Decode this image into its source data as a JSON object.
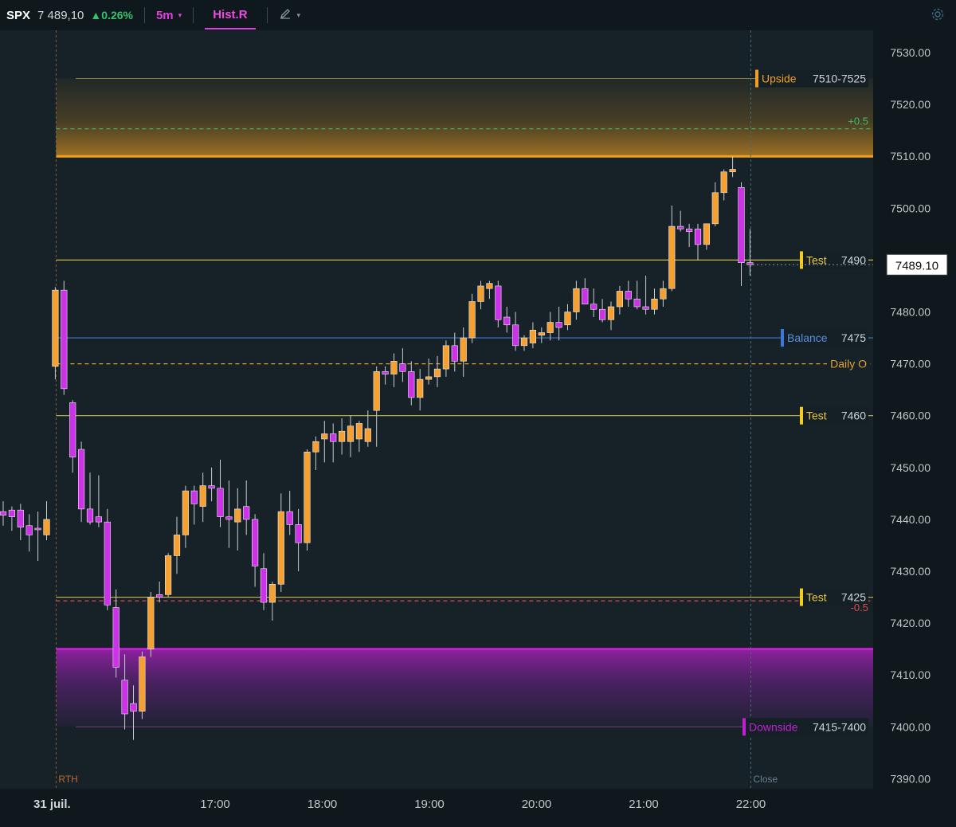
{
  "header": {
    "symbol": "SPX",
    "last_price": "7 489,10",
    "change": "▲0.26%",
    "timeframe": "5m",
    "timeframe_caret": "▾",
    "tab_label": "Hist.R",
    "draw_icon": "pencil-icon",
    "draw_caret": "▾",
    "settings_icon": "gear-icon"
  },
  "colors": {
    "background": "#162228",
    "up_candle": "#f5a030",
    "down_candle": "#cc33e8",
    "upside_zone": "#f0a020",
    "downside_zone": "#c020d0",
    "balance_line": "#3b78d8",
    "test_line": "#c8b84a",
    "plus_line": "#3fbf5f",
    "minus_line": "#e04a4a",
    "price_tag_bg": "#ffffff"
  },
  "chart_data": {
    "type": "candlestick",
    "symbol": "SPX",
    "interval": "5m",
    "date_label": "31 juil.",
    "time_ticks": [
      "17:00",
      "18:00",
      "19:00",
      "20:00",
      "21:00",
      "22:00"
    ],
    "y_ticks": [
      "7530.00",
      "7520.00",
      "7510.00",
      "7500.00",
      "7490.00",
      "7480.00",
      "7470.00",
      "7460.00",
      "7450.00",
      "7440.00",
      "7430.00",
      "7420.00",
      "7410.00",
      "7400.00",
      "7390.00"
    ],
    "ylim": [
      7388,
      7533
    ],
    "last_price": "7489.10",
    "zones": [
      {
        "label": "Upside",
        "range": "7510-7525",
        "from": 7510,
        "to": 7525,
        "color": "#f0a020"
      },
      {
        "label": "Downside",
        "range": "7415-7400",
        "from": 7400,
        "to": 7415,
        "color": "#c020d0"
      }
    ],
    "levels": [
      {
        "label": "Test",
        "value_label": "7490",
        "price": 7490,
        "color": "#c8b84a",
        "tag": "#f2cc20",
        "style": "solid"
      },
      {
        "label": "Balance",
        "value_label": "7475",
        "price": 7475,
        "color": "#3b78d8",
        "tag": "#3b78d8",
        "style": "solid"
      },
      {
        "label": "Daily O",
        "value_label": "",
        "price": 7470,
        "color": "#e0a030",
        "tag": "",
        "style": "dashed"
      },
      {
        "label": "Test",
        "value_label": "7460",
        "price": 7460,
        "color": "#c8b84a",
        "tag": "#f2cc20",
        "style": "solid"
      },
      {
        "label": "Test",
        "value_label": "7425",
        "price": 7425,
        "color": "#c8b84a",
        "tag": "#f2cc20",
        "style": "solid"
      },
      {
        "label": "+0.5",
        "value_label": "",
        "price": 7515.3,
        "color": "#3fbf5f",
        "tag": "",
        "style": "dashed"
      },
      {
        "label": "-0.5",
        "value_label": "",
        "price": 7424.3,
        "color": "#e04a4a",
        "tag": "",
        "style": "dashed"
      }
    ],
    "session_labels": {
      "open": "RTH",
      "close": "Close"
    },
    "candles": [
      {
        "time": "15:25",
        "open": 7441.5,
        "high": 7443.5,
        "low": 7438.8,
        "close": 7440.8
      },
      {
        "time": "15:30",
        "open": 7441.8,
        "high": 7442.5,
        "low": 7437.8,
        "close": 7440.5
      },
      {
        "time": "15:35",
        "open": 7441.8,
        "high": 7443.0,
        "low": 7436.0,
        "close": 7438.5
      },
      {
        "time": "15:40",
        "open": 7438.8,
        "high": 7441.0,
        "low": 7433.8,
        "close": 7437.0
      },
      {
        "time": "15:45",
        "open": 7438.3,
        "high": 7441.5,
        "low": 7432.0,
        "close": 7438.0
      },
      {
        "time": "15:50",
        "open": 7437.0,
        "high": 7443.5,
        "low": 7436.0,
        "close": 7440.0
      },
      {
        "time": "15:55",
        "open": 7469.5,
        "high": 7484.8,
        "low": 7467.0,
        "close": 7484.2
      },
      {
        "time": "16:00",
        "open": 7484.2,
        "high": 7486.0,
        "low": 7464.0,
        "close": 7465.2
      },
      {
        "time": "16:05",
        "open": 7462.5,
        "high": 7463.0,
        "low": 7449.0,
        "close": 7452.0
      },
      {
        "time": "16:10",
        "open": 7453.5,
        "high": 7455.0,
        "low": 7439.5,
        "close": 7442.0
      },
      {
        "time": "16:15",
        "open": 7442.0,
        "high": 7449.0,
        "low": 7439.0,
        "close": 7439.5
      },
      {
        "time": "16:20",
        "open": 7440.5,
        "high": 7448.5,
        "low": 7438.5,
        "close": 7439.5
      },
      {
        "time": "16:25",
        "open": 7439.5,
        "high": 7442.0,
        "low": 7422.5,
        "close": 7423.5
      },
      {
        "time": "16:30",
        "open": 7423.0,
        "high": 7426.5,
        "low": 7409.5,
        "close": 7411.5
      },
      {
        "time": "16:35",
        "open": 7409.0,
        "high": 7414.0,
        "low": 7399.5,
        "close": 7402.5
      },
      {
        "time": "16:40",
        "open": 7404.5,
        "high": 7408.0,
        "low": 7397.5,
        "close": 7403.0
      },
      {
        "time": "16:45",
        "open": 7403.0,
        "high": 7414.5,
        "low": 7401.5,
        "close": 7413.5
      },
      {
        "time": "16:50",
        "open": 7415.0,
        "high": 7426.0,
        "low": 7413.5,
        "close": 7425.0
      },
      {
        "time": "16:55",
        "open": 7425.5,
        "high": 7428.0,
        "low": 7424.0,
        "close": 7425.0
      },
      {
        "time": "17:00",
        "open": 7425.5,
        "high": 7433.5,
        "low": 7425.0,
        "close": 7433.0
      },
      {
        "time": "17:05",
        "open": 7433.0,
        "high": 7440.5,
        "low": 7429.5,
        "close": 7437.0
      },
      {
        "time": "17:10",
        "open": 7437.0,
        "high": 7446.5,
        "low": 7434.5,
        "close": 7445.5
      },
      {
        "time": "17:15",
        "open": 7445.5,
        "high": 7446.5,
        "low": 7439.0,
        "close": 7443.0
      },
      {
        "time": "17:20",
        "open": 7442.5,
        "high": 7449.0,
        "low": 7439.5,
        "close": 7446.5
      },
      {
        "time": "17:25",
        "open": 7446.5,
        "high": 7450.0,
        "low": 7443.5,
        "close": 7446.0
      },
      {
        "time": "17:30",
        "open": 7446.0,
        "high": 7451.5,
        "low": 7438.5,
        "close": 7440.5
      },
      {
        "time": "17:35",
        "open": 7440.5,
        "high": 7447.5,
        "low": 7434.5,
        "close": 7440.0
      },
      {
        "time": "17:40",
        "open": 7439.5,
        "high": 7446.0,
        "low": 7434.0,
        "close": 7442.0
      },
      {
        "time": "17:45",
        "open": 7442.5,
        "high": 7447.5,
        "low": 7437.0,
        "close": 7440.0
      },
      {
        "time": "17:50",
        "open": 7440.0,
        "high": 7441.0,
        "low": 7427.0,
        "close": 7431.0
      },
      {
        "time": "17:55",
        "open": 7430.5,
        "high": 7433.5,
        "low": 7422.5,
        "close": 7424.0
      },
      {
        "time": "18:00",
        "open": 7424.0,
        "high": 7428.0,
        "low": 7420.5,
        "close": 7427.5
      },
      {
        "time": "18:05",
        "open": 7427.5,
        "high": 7445.0,
        "low": 7426.0,
        "close": 7441.5
      },
      {
        "time": "18:10",
        "open": 7441.5,
        "high": 7445.5,
        "low": 7437.0,
        "close": 7439.0
      },
      {
        "time": "18:15",
        "open": 7439.0,
        "high": 7442.0,
        "low": 7430.0,
        "close": 7435.5
      },
      {
        "time": "18:20",
        "open": 7435.5,
        "high": 7453.5,
        "low": 7434.0,
        "close": 7453.0
      },
      {
        "time": "18:25",
        "open": 7453.0,
        "high": 7456.0,
        "low": 7449.5,
        "close": 7455.0
      },
      {
        "time": "18:30",
        "open": 7455.5,
        "high": 7459.0,
        "low": 7451.0,
        "close": 7456.5
      },
      {
        "time": "18:35",
        "open": 7456.5,
        "high": 7458.5,
        "low": 7451.0,
        "close": 7455.0
      },
      {
        "time": "18:40",
        "open": 7455.0,
        "high": 7459.5,
        "low": 7452.5,
        "close": 7457.0
      },
      {
        "time": "18:45",
        "open": 7455.0,
        "high": 7460.0,
        "low": 7452.0,
        "close": 7458.0
      },
      {
        "time": "18:50",
        "open": 7455.5,
        "high": 7459.0,
        "low": 7453.0,
        "close": 7458.5
      },
      {
        "time": "18:55",
        "open": 7455.0,
        "high": 7461.0,
        "low": 7454.0,
        "close": 7457.5
      },
      {
        "time": "19:00",
        "open": 7461.0,
        "high": 7469.5,
        "low": 7454.0,
        "close": 7468.5
      },
      {
        "time": "19:05",
        "open": 7468.5,
        "high": 7469.5,
        "low": 7466.0,
        "close": 7468.0
      },
      {
        "time": "19:10",
        "open": 7468.0,
        "high": 7472.0,
        "low": 7465.5,
        "close": 7470.5
      },
      {
        "time": "19:15",
        "open": 7470.0,
        "high": 7473.0,
        "low": 7466.5,
        "close": 7468.5
      },
      {
        "time": "19:20",
        "open": 7468.5,
        "high": 7470.5,
        "low": 7462.0,
        "close": 7463.5
      },
      {
        "time": "19:25",
        "open": 7463.5,
        "high": 7469.0,
        "low": 7461.0,
        "close": 7467.0
      },
      {
        "time": "19:30",
        "open": 7467.0,
        "high": 7471.0,
        "low": 7466.0,
        "close": 7467.5
      },
      {
        "time": "19:35",
        "open": 7467.5,
        "high": 7471.5,
        "low": 7465.5,
        "close": 7469.0
      },
      {
        "time": "19:40",
        "open": 7469.0,
        "high": 7474.5,
        "low": 7467.5,
        "close": 7473.5
      },
      {
        "time": "19:45",
        "open": 7473.5,
        "high": 7476.0,
        "low": 7468.5,
        "close": 7470.5
      },
      {
        "time": "19:50",
        "open": 7470.5,
        "high": 7477.0,
        "low": 7467.5,
        "close": 7475.0
      },
      {
        "time": "19:55",
        "open": 7475.0,
        "high": 7483.5,
        "low": 7474.0,
        "close": 7482.0
      },
      {
        "time": "20:00",
        "open": 7482.0,
        "high": 7486.0,
        "low": 7480.5,
        "close": 7485.0
      },
      {
        "time": "20:05",
        "open": 7484.5,
        "high": 7486.0,
        "low": 7482.5,
        "close": 7485.5
      },
      {
        "time": "20:10",
        "open": 7485.0,
        "high": 7486.0,
        "low": 7477.0,
        "close": 7478.5
      },
      {
        "time": "20:15",
        "open": 7479.0,
        "high": 7481.0,
        "low": 7476.0,
        "close": 7477.5
      },
      {
        "time": "20:20",
        "open": 7477.5,
        "high": 7480.0,
        "low": 7472.5,
        "close": 7473.5
      },
      {
        "time": "20:25",
        "open": 7473.5,
        "high": 7475.5,
        "low": 7472.5,
        "close": 7475.0
      },
      {
        "time": "20:30",
        "open": 7474.0,
        "high": 7478.0,
        "low": 7473.0,
        "close": 7476.5
      },
      {
        "time": "20:35",
        "open": 7475.5,
        "high": 7477.0,
        "low": 7474.0,
        "close": 7476.0
      },
      {
        "time": "20:40",
        "open": 7476.0,
        "high": 7480.0,
        "low": 7474.5,
        "close": 7478.0
      },
      {
        "time": "20:45",
        "open": 7478.0,
        "high": 7481.0,
        "low": 7474.5,
        "close": 7477.0
      },
      {
        "time": "20:50",
        "open": 7477.5,
        "high": 7481.5,
        "low": 7476.5,
        "close": 7480.0
      },
      {
        "time": "20:55",
        "open": 7480.0,
        "high": 7486.0,
        "low": 7478.5,
        "close": 7484.5
      },
      {
        "time": "21:00",
        "open": 7484.5,
        "high": 7486.5,
        "low": 7481.5,
        "close": 7481.5
      },
      {
        "time": "21:05",
        "open": 7481.5,
        "high": 7484.5,
        "low": 7479.0,
        "close": 7480.5
      },
      {
        "time": "21:10",
        "open": 7480.5,
        "high": 7482.5,
        "low": 7478.0,
        "close": 7478.5
      },
      {
        "time": "21:15",
        "open": 7478.5,
        "high": 7482.0,
        "low": 7476.5,
        "close": 7481.0
      },
      {
        "time": "21:20",
        "open": 7481.0,
        "high": 7485.0,
        "low": 7479.5,
        "close": 7484.0
      },
      {
        "time": "21:25",
        "open": 7484.0,
        "high": 7486.0,
        "low": 7481.0,
        "close": 7482.5
      },
      {
        "time": "21:30",
        "open": 7482.5,
        "high": 7486.0,
        "low": 7480.5,
        "close": 7481.0
      },
      {
        "time": "21:35",
        "open": 7481.0,
        "high": 7487.0,
        "low": 7479.5,
        "close": 7480.5
      },
      {
        "time": "21:40",
        "open": 7480.5,
        "high": 7484.5,
        "low": 7479.5,
        "close": 7482.5
      },
      {
        "time": "21:45",
        "open": 7482.5,
        "high": 7486.0,
        "low": 7481.0,
        "close": 7484.5
      },
      {
        "time": "21:50",
        "open": 7484.5,
        "high": 7500.5,
        "low": 7484.0,
        "close": 7496.5
      },
      {
        "time": "21:55",
        "open": 7496.5,
        "high": 7499.5,
        "low": 7495.5,
        "close": 7496.0
      },
      {
        "time": "22:00",
        "open": 7496.0,
        "high": 7497.0,
        "low": 7492.5,
        "close": 7495.5
      },
      {
        "time": "22:05",
        "open": 7496.0,
        "high": 7497.0,
        "low": 7490.0,
        "close": 7493.0
      },
      {
        "time": "22:10",
        "open": 7493.0,
        "high": 7497.0,
        "low": 7492.0,
        "close": 7497.0
      },
      {
        "time": "22:15",
        "open": 7497.0,
        "high": 7505.0,
        "low": 7496.5,
        "close": 7503.0
      },
      {
        "time": "22:20",
        "open": 7503.0,
        "high": 7507.5,
        "low": 7501.5,
        "close": 7507.0
      },
      {
        "time": "22:25",
        "open": 7507.0,
        "high": 7510.0,
        "low": 7506.0,
        "close": 7507.5
      },
      {
        "time": "22:30",
        "open": 7504.0,
        "high": 7505.0,
        "low": 7485.0,
        "close": 7489.5
      },
      {
        "time": "22:35",
        "open": 7489.5,
        "high": 7496.0,
        "low": 7487.0,
        "close": 7489.1
      }
    ]
  }
}
